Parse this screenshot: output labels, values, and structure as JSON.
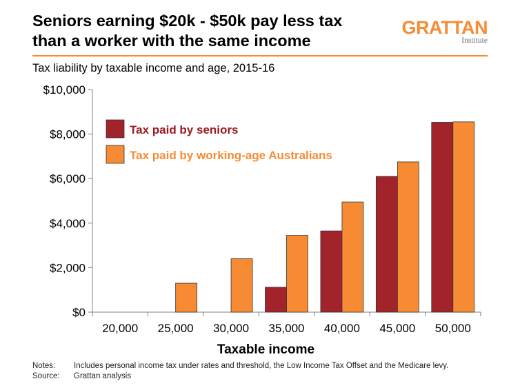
{
  "header": {
    "title_line1": "Seniors earning $20k - $50k pay less tax",
    "title_line2": "than a worker with the same income",
    "subtitle": "Tax liability by taxable income and age, 2015-16",
    "logo_main": "GRATTAN",
    "logo_sub": "Institute"
  },
  "footer": {
    "notes_label": "Notes:",
    "notes_text": "Includes personal income tax under rates and threshold, the Low Income Tax Offset and the Medicare levy.",
    "source_label": "Source:",
    "source_text": "Grattan analysis"
  },
  "colors": {
    "accent": "#F68B33",
    "seniors": "#A3232B",
    "working": "#F68B33",
    "seniors_text": "#9B1B24",
    "working_text": "#F68B33"
  },
  "chart_data": {
    "type": "bar",
    "categories": [
      "20,000",
      "25,000",
      "30,000",
      "35,000",
      "40,000",
      "45,000",
      "50,000"
    ],
    "series": [
      {
        "name": "Tax paid by seniors",
        "values": [
          0,
          0,
          0,
          1120,
          3650,
          6100,
          8530
        ]
      },
      {
        "name": "Tax paid by working-age Australians",
        "values": [
          0,
          1300,
          2400,
          3450,
          4950,
          6750,
          8550
        ]
      }
    ],
    "xlabel": "Taxable income",
    "ylabel": "",
    "ylim": [
      0,
      10000
    ],
    "yticks": [
      0,
      2000,
      4000,
      6000,
      8000,
      10000
    ],
    "ytick_labels": [
      "$0",
      "$2,000",
      "$4,000",
      "$6,000",
      "$8,000",
      "$10,000"
    ],
    "legend_position": "top-left",
    "grid": false
  }
}
